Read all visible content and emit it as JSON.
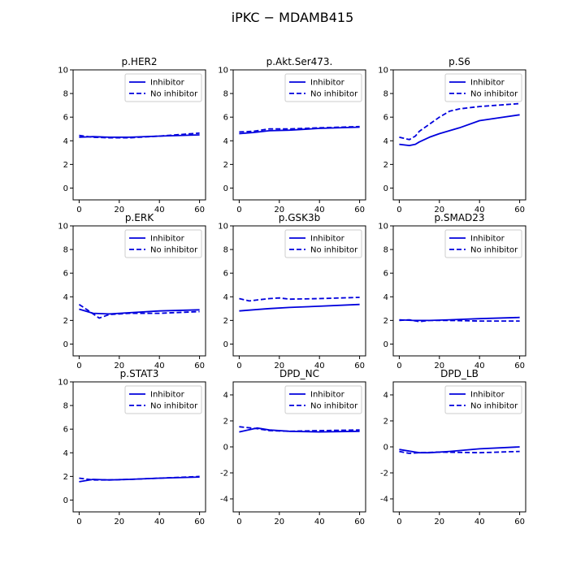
{
  "figure": {
    "title": "iPKC − MDAMB415"
  },
  "colors": {
    "line": "#0000dd"
  },
  "chart_data": [
    {
      "type": "line",
      "title": "p.HER2",
      "xlim": [
        -3,
        63
      ],
      "ylim": [
        -1,
        10
      ],
      "xticks": [
        0,
        20,
        40,
        60
      ],
      "yticks": [
        0,
        2,
        4,
        6,
        8,
        10
      ],
      "legend": "top-right",
      "series": [
        {
          "name": "Inhibitor",
          "style": "solid",
          "x": [
            0,
            7,
            15,
            25,
            40,
            60
          ],
          "y": [
            4.3,
            4.35,
            4.3,
            4.3,
            4.4,
            4.5
          ]
        },
        {
          "name": "No inhibitor",
          "style": "dashed",
          "x": [
            0,
            7,
            15,
            25,
            40,
            60
          ],
          "y": [
            4.45,
            4.3,
            4.25,
            4.25,
            4.4,
            4.65
          ]
        }
      ]
    },
    {
      "type": "line",
      "title": "p.Akt.Ser473.",
      "xlim": [
        -3,
        63
      ],
      "ylim": [
        -1,
        10
      ],
      "xticks": [
        0,
        20,
        40,
        60
      ],
      "yticks": [
        0,
        2,
        4,
        6,
        8,
        10
      ],
      "legend": "top-right",
      "series": [
        {
          "name": "Inhibitor",
          "style": "solid",
          "x": [
            0,
            7,
            15,
            25,
            40,
            60
          ],
          "y": [
            4.6,
            4.7,
            4.85,
            4.9,
            5.05,
            5.15
          ]
        },
        {
          "name": "No inhibitor",
          "style": "dashed",
          "x": [
            0,
            7,
            15,
            25,
            40,
            60
          ],
          "y": [
            4.75,
            4.8,
            5.0,
            5.0,
            5.1,
            5.2
          ]
        }
      ]
    },
    {
      "type": "line",
      "title": "p.S6",
      "xlim": [
        -3,
        63
      ],
      "ylim": [
        -1,
        10
      ],
      "xticks": [
        0,
        20,
        40,
        60
      ],
      "yticks": [
        0,
        2,
        4,
        6,
        8,
        10
      ],
      "legend": "top-right",
      "series": [
        {
          "name": "Inhibitor",
          "style": "solid",
          "x": [
            0,
            5,
            8,
            10,
            15,
            20,
            30,
            40,
            50,
            60
          ],
          "y": [
            3.7,
            3.6,
            3.7,
            3.9,
            4.3,
            4.6,
            5.1,
            5.7,
            5.95,
            6.2
          ]
        },
        {
          "name": "No inhibitor",
          "style": "dashed",
          "x": [
            0,
            5,
            8,
            10,
            15,
            20,
            25,
            30,
            40,
            60
          ],
          "y": [
            4.3,
            4.1,
            4.4,
            4.8,
            5.4,
            6.0,
            6.5,
            6.7,
            6.9,
            7.15
          ]
        }
      ]
    },
    {
      "type": "line",
      "title": "p.ERK",
      "xlim": [
        -3,
        63
      ],
      "ylim": [
        -1,
        10
      ],
      "xticks": [
        0,
        20,
        40,
        60
      ],
      "yticks": [
        0,
        2,
        4,
        6,
        8,
        10
      ],
      "legend": "top-right",
      "series": [
        {
          "name": "Inhibitor",
          "style": "solid",
          "x": [
            0,
            7,
            15,
            25,
            40,
            60
          ],
          "y": [
            2.95,
            2.6,
            2.55,
            2.65,
            2.8,
            2.9
          ]
        },
        {
          "name": "No inhibitor",
          "style": "dashed",
          "x": [
            0,
            4,
            10,
            15,
            25,
            40,
            60
          ],
          "y": [
            3.35,
            2.9,
            2.2,
            2.5,
            2.6,
            2.6,
            2.75
          ]
        }
      ]
    },
    {
      "type": "line",
      "title": "p.GSK3b",
      "xlim": [
        -3,
        63
      ],
      "ylim": [
        -1,
        10
      ],
      "xticks": [
        0,
        20,
        40,
        60
      ],
      "yticks": [
        0,
        2,
        4,
        6,
        8,
        10
      ],
      "legend": "top-right",
      "series": [
        {
          "name": "Inhibitor",
          "style": "solid",
          "x": [
            0,
            7,
            15,
            25,
            40,
            60
          ],
          "y": [
            2.8,
            2.9,
            3.0,
            3.1,
            3.2,
            3.35
          ]
        },
        {
          "name": "No inhibitor",
          "style": "dashed",
          "x": [
            0,
            5,
            10,
            15,
            20,
            25,
            40,
            60
          ],
          "y": [
            3.85,
            3.65,
            3.75,
            3.85,
            3.9,
            3.8,
            3.85,
            3.95
          ]
        }
      ]
    },
    {
      "type": "line",
      "title": "p.SMAD23",
      "xlim": [
        -3,
        63
      ],
      "ylim": [
        -1,
        10
      ],
      "xticks": [
        0,
        20,
        40,
        60
      ],
      "yticks": [
        0,
        2,
        4,
        6,
        8,
        10
      ],
      "legend": "top-right",
      "series": [
        {
          "name": "Inhibitor",
          "style": "solid",
          "x": [
            0,
            7,
            15,
            25,
            40,
            60
          ],
          "y": [
            2.05,
            2.0,
            2.0,
            2.05,
            2.15,
            2.25
          ]
        },
        {
          "name": "No inhibitor",
          "style": "dashed",
          "x": [
            0,
            5,
            10,
            15,
            25,
            40,
            60
          ],
          "y": [
            2.0,
            2.05,
            1.9,
            2.0,
            2.0,
            1.95,
            1.95
          ]
        }
      ]
    },
    {
      "type": "line",
      "title": "p.STAT3",
      "xlim": [
        -3,
        63
      ],
      "ylim": [
        -1,
        10
      ],
      "xticks": [
        0,
        20,
        40,
        60
      ],
      "yticks": [
        0,
        2,
        4,
        6,
        8,
        10
      ],
      "legend": "top-right",
      "series": [
        {
          "name": "Inhibitor",
          "style": "solid",
          "x": [
            0,
            7,
            15,
            25,
            40,
            60
          ],
          "y": [
            1.55,
            1.75,
            1.7,
            1.75,
            1.85,
            1.95
          ]
        },
        {
          "name": "No inhibitor",
          "style": "dashed",
          "x": [
            0,
            7,
            15,
            25,
            40,
            60
          ],
          "y": [
            1.85,
            1.7,
            1.7,
            1.75,
            1.85,
            2.0
          ]
        }
      ]
    },
    {
      "type": "line",
      "title": "DPD_NC",
      "xlim": [
        -3,
        63
      ],
      "ylim": [
        -5,
        5
      ],
      "xticks": [
        0,
        20,
        40,
        60
      ],
      "yticks": [
        -4,
        -2,
        0,
        2,
        4
      ],
      "legend": "top-right",
      "series": [
        {
          "name": "Inhibitor",
          "style": "solid",
          "x": [
            0,
            9,
            15,
            25,
            40,
            60
          ],
          "y": [
            1.15,
            1.45,
            1.3,
            1.2,
            1.15,
            1.2
          ]
        },
        {
          "name": "No inhibitor",
          "style": "dashed",
          "x": [
            0,
            9,
            15,
            25,
            40,
            60
          ],
          "y": [
            1.55,
            1.4,
            1.25,
            1.2,
            1.25,
            1.3
          ]
        }
      ]
    },
    {
      "type": "line",
      "title": "DPD_LB",
      "xlim": [
        -3,
        63
      ],
      "ylim": [
        -5,
        5
      ],
      "xticks": [
        0,
        20,
        40,
        60
      ],
      "yticks": [
        -4,
        -2,
        0,
        2,
        4
      ],
      "legend": "top-right",
      "series": [
        {
          "name": "Inhibitor",
          "style": "solid",
          "x": [
            0,
            10,
            15,
            25,
            40,
            60
          ],
          "y": [
            -0.2,
            -0.45,
            -0.45,
            -0.35,
            -0.15,
            0.0
          ]
        },
        {
          "name": "No inhibitor",
          "style": "dashed",
          "x": [
            0,
            5,
            10,
            20,
            40,
            60
          ],
          "y": [
            -0.35,
            -0.5,
            -0.45,
            -0.4,
            -0.45,
            -0.35
          ]
        }
      ]
    }
  ]
}
